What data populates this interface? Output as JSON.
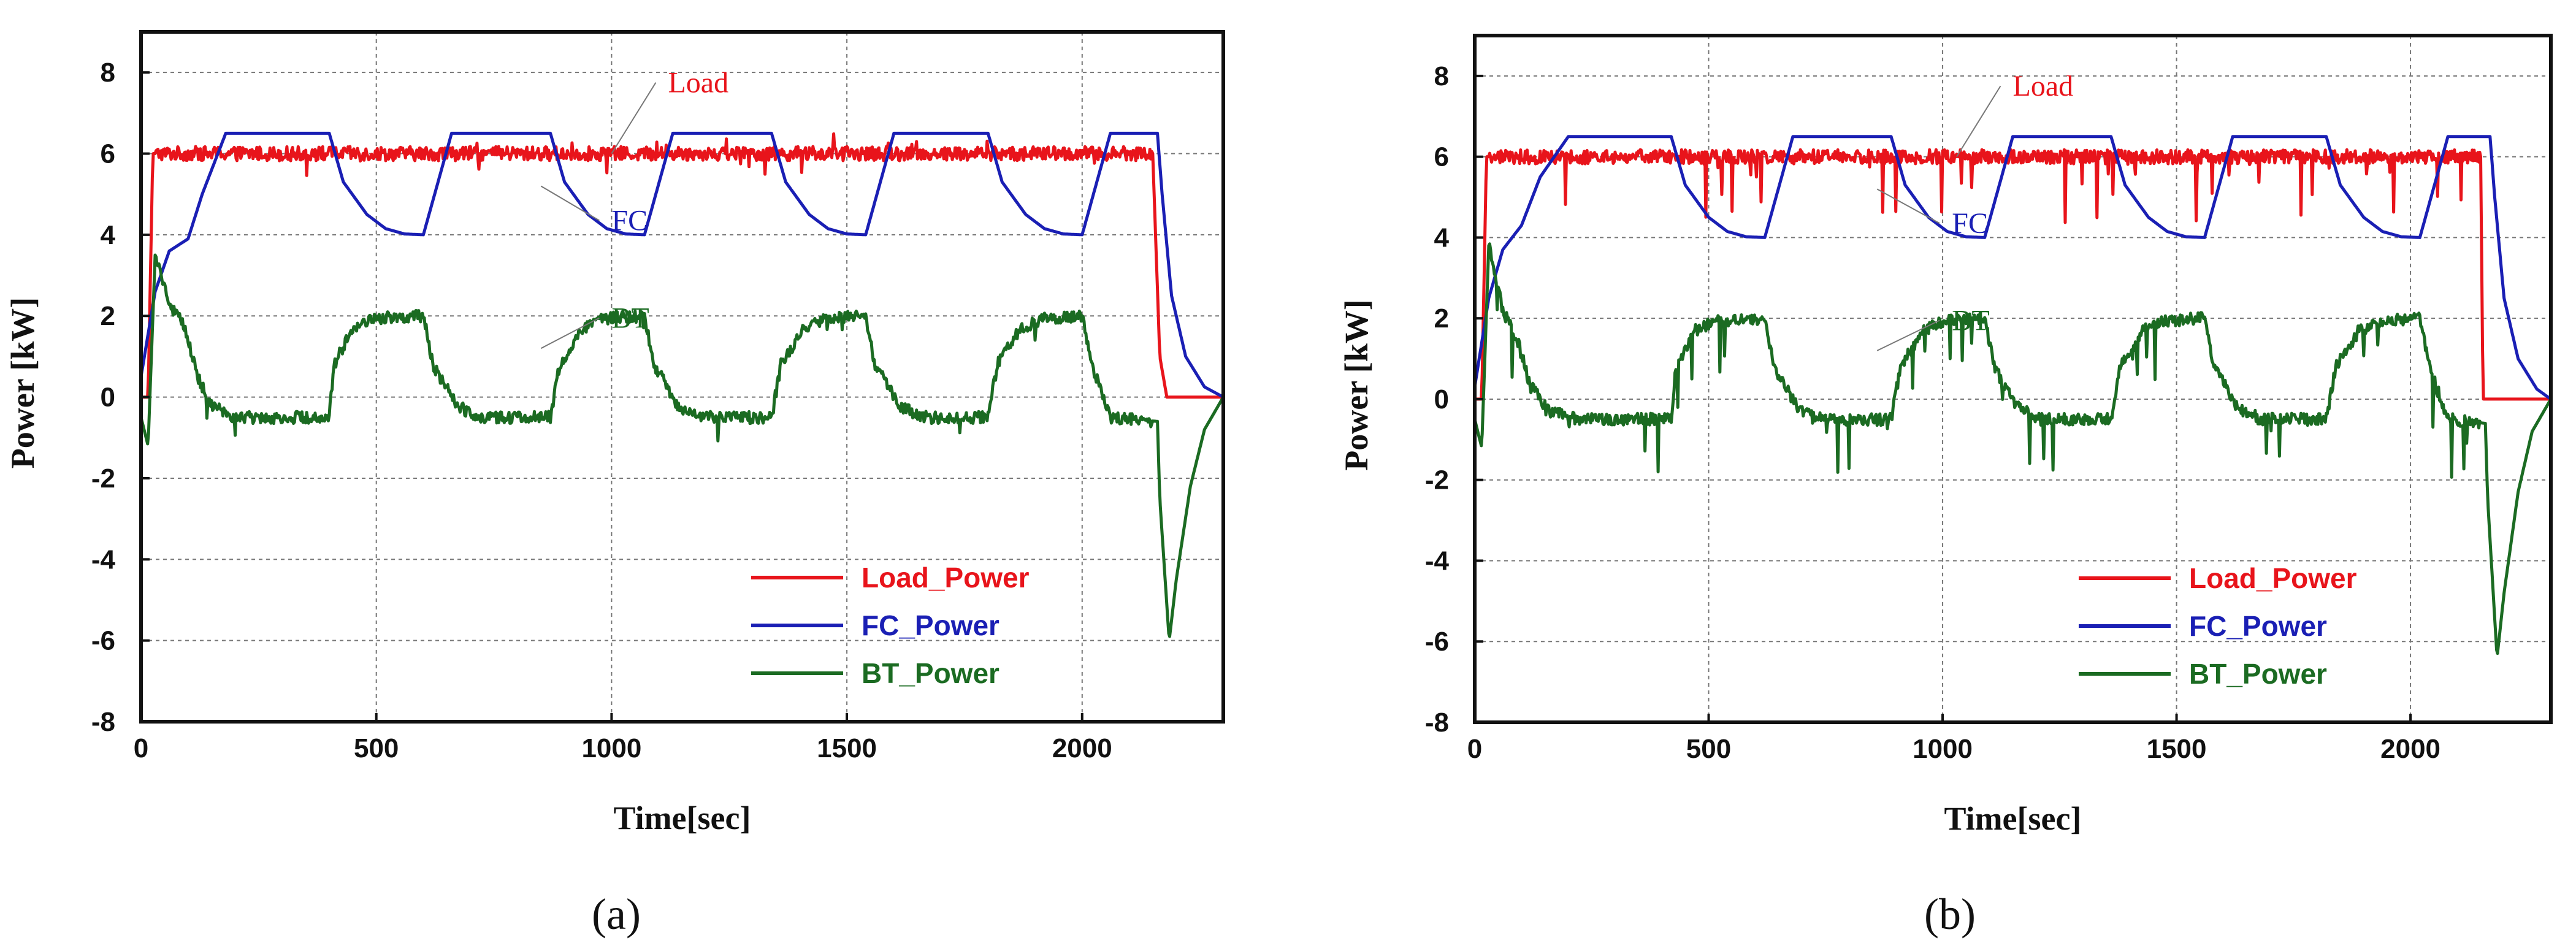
{
  "chart_data": [
    {
      "panel": "a",
      "type": "line",
      "panel_label": "(a)",
      "title": "",
      "xlabel": "Time[sec]",
      "ylabel": "Power [kW]",
      "xlim": [
        0,
        2300
      ],
      "ylim": [
        -8,
        9
      ],
      "xticks": [
        0,
        500,
        1000,
        1500,
        2000
      ],
      "yticks": [
        -8,
        -6,
        -4,
        -2,
        0,
        2,
        4,
        6,
        8
      ],
      "grid": true,
      "legend_position": "bottom-right",
      "noise_level": "low",
      "series": [
        {
          "name": "Load_Power",
          "color": "#e8141b",
          "x": [
            0,
            15,
            25,
            200,
            400,
            600,
            800,
            1000,
            1200,
            1400,
            1600,
            1800,
            2000,
            2150,
            2165,
            2180,
            2300
          ],
          "y": [
            0,
            0,
            6,
            6,
            6,
            6,
            6,
            6,
            6,
            6,
            6,
            6,
            6,
            6,
            1,
            0,
            0
          ]
        },
        {
          "name": "FC_Power",
          "color": "#1a1fb4",
          "x": [
            0,
            30,
            60,
            100,
            130,
            180,
            400,
            430,
            480,
            520,
            560,
            600,
            660,
            870,
            900,
            950,
            990,
            1030,
            1070,
            1130,
            1340,
            1370,
            1420,
            1460,
            1500,
            1540,
            1600,
            1800,
            1830,
            1880,
            1920,
            1960,
            2000,
            2060,
            2160,
            2170,
            2190,
            2220,
            2260,
            2300
          ],
          "y": [
            0.5,
            2.6,
            3.6,
            3.9,
            5.0,
            6.5,
            6.5,
            5.3,
            4.5,
            4.15,
            4.02,
            4.0,
            6.5,
            6.5,
            5.3,
            4.5,
            4.15,
            4.02,
            4.0,
            6.5,
            6.5,
            5.3,
            4.5,
            4.15,
            4.02,
            4.0,
            6.5,
            6.5,
            5.3,
            4.5,
            4.15,
            4.02,
            4.0,
            6.5,
            6.5,
            5.0,
            2.5,
            1.0,
            0.25,
            0
          ]
        },
        {
          "name": "BT_Power",
          "color": "#1b6b22",
          "x": [
            0,
            15,
            30,
            60,
            90,
            120,
            150,
            200,
            400,
            410,
            450,
            500,
            600,
            620,
            670,
            720,
            870,
            890,
            940,
            990,
            1070,
            1090,
            1140,
            1190,
            1340,
            1360,
            1410,
            1460,
            1540,
            1560,
            1610,
            1660,
            1800,
            1820,
            1870,
            1920,
            2000,
            2020,
            2060,
            2160,
            2165,
            2185,
            2200,
            2230,
            2260,
            2300
          ],
          "y": [
            -0.5,
            -1.2,
            3.5,
            2.3,
            1.8,
            0.5,
            -0.2,
            -0.5,
            -0.5,
            0.8,
            1.7,
            1.95,
            2.0,
            0.8,
            -0.2,
            -0.5,
            -0.5,
            0.8,
            1.7,
            1.95,
            2.0,
            0.8,
            -0.2,
            -0.5,
            -0.5,
            0.8,
            1.7,
            1.95,
            2.0,
            0.8,
            -0.2,
            -0.5,
            -0.5,
            0.8,
            1.7,
            1.95,
            2.0,
            0.8,
            -0.5,
            -0.6,
            -2.5,
            -6.0,
            -4.5,
            -2.2,
            -0.8,
            0
          ]
        }
      ],
      "annotations": [
        {
          "text": "Load",
          "color": "#e8141b",
          "x": 1120,
          "y": 7.6,
          "tx": 1000,
          "ty": 6.0
        },
        {
          "text": "FC",
          "color": "#1a1fb4",
          "x": 1000,
          "y": 4.2,
          "tx": 850,
          "ty": 5.2
        },
        {
          "text": "BT",
          "color": "#1b6b22",
          "x": 1000,
          "y": 1.8,
          "tx": 850,
          "ty": 1.2
        }
      ]
    },
    {
      "panel": "b",
      "type": "line",
      "panel_label": "(b)",
      "title": "",
      "xlabel": "Time[sec]",
      "ylabel": "Power [kW]",
      "xlim": [
        0,
        2300
      ],
      "ylim": [
        -8,
        9
      ],
      "xticks": [
        0,
        500,
        1000,
        1500,
        2000
      ],
      "yticks": [
        -8,
        -6,
        -4,
        -2,
        0,
        2,
        4,
        6,
        8
      ],
      "grid": true,
      "legend_position": "bottom-right",
      "noise_level": "high",
      "series": [
        {
          "name": "Load_Power",
          "color": "#e8141b",
          "x": [
            0,
            15,
            25,
            200,
            400,
            600,
            800,
            1000,
            1200,
            1400,
            1600,
            1800,
            2000,
            2150,
            2155,
            2300
          ],
          "y": [
            0,
            0,
            6,
            6,
            6,
            6,
            6,
            6,
            6,
            6,
            6,
            6,
            6,
            6,
            0,
            0
          ]
        },
        {
          "name": "FC_Power",
          "color": "#1a1fb4",
          "x": [
            0,
            30,
            60,
            100,
            140,
            200,
            420,
            450,
            500,
            540,
            580,
            620,
            680,
            890,
            920,
            970,
            1010,
            1050,
            1090,
            1150,
            1360,
            1390,
            1440,
            1480,
            1520,
            1560,
            1620,
            1820,
            1850,
            1900,
            1940,
            1980,
            2020,
            2080,
            2170,
            2180,
            2200,
            2230,
            2270,
            2300
          ],
          "y": [
            0.3,
            2.5,
            3.7,
            4.3,
            5.5,
            6.5,
            6.5,
            5.3,
            4.5,
            4.15,
            4.02,
            4.0,
            6.5,
            6.5,
            5.3,
            4.5,
            4.15,
            4.02,
            4.0,
            6.5,
            6.5,
            5.3,
            4.5,
            4.15,
            4.02,
            4.0,
            6.5,
            6.5,
            5.3,
            4.5,
            4.15,
            4.02,
            4.0,
            6.5,
            6.5,
            5.0,
            2.5,
            1.0,
            0.25,
            0
          ]
        },
        {
          "name": "BT_Power",
          "color": "#1b6b22",
          "x": [
            0,
            15,
            30,
            60,
            90,
            120,
            160,
            220,
            420,
            430,
            470,
            520,
            620,
            640,
            690,
            740,
            890,
            910,
            960,
            1010,
            1090,
            1110,
            1160,
            1210,
            1360,
            1380,
            1430,
            1480,
            1560,
            1580,
            1630,
            1680,
            1820,
            1840,
            1890,
            1940,
            2020,
            2040,
            2080,
            2160,
            2165,
            2185,
            2200,
            2230,
            2260,
            2300
          ],
          "y": [
            -0.5,
            -1.2,
            3.8,
            2.2,
            1.5,
            0.3,
            -0.3,
            -0.5,
            -0.5,
            0.8,
            1.7,
            1.95,
            2.0,
            0.8,
            -0.2,
            -0.5,
            -0.5,
            0.8,
            1.7,
            1.95,
            2.0,
            0.8,
            -0.2,
            -0.5,
            -0.5,
            0.8,
            1.7,
            1.95,
            2.0,
            0.8,
            -0.2,
            -0.5,
            -0.5,
            0.8,
            1.7,
            1.95,
            2.0,
            0.8,
            -0.5,
            -0.6,
            -2.5,
            -6.4,
            -4.8,
            -2.3,
            -0.8,
            0
          ]
        }
      ],
      "annotations": [
        {
          "text": "Load",
          "color": "#e8141b",
          "x": 1150,
          "y": 7.6,
          "tx": 1030,
          "ty": 6.0
        },
        {
          "text": "FC",
          "color": "#1a1fb4",
          "x": 1020,
          "y": 4.2,
          "tx": 860,
          "ty": 5.2
        },
        {
          "text": "BT",
          "color": "#1b6b22",
          "x": 1020,
          "y": 1.8,
          "tx": 860,
          "ty": 1.2
        }
      ]
    }
  ]
}
